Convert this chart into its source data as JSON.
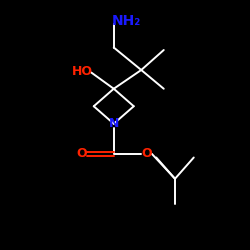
{
  "bg_color": "#000000",
  "line_color": "#ffffff",
  "N_color": "#1a1aff",
  "O_color": "#ff2200",
  "font_size_N": 9,
  "font_size_O": 9,
  "font_size_NH2": 10,
  "font_size_HO": 9,
  "line_width": 1.4,
  "xlim": [
    0,
    10
  ],
  "ylim": [
    0,
    10
  ],
  "figsize": [
    2.5,
    2.5
  ],
  "dpi": 100
}
